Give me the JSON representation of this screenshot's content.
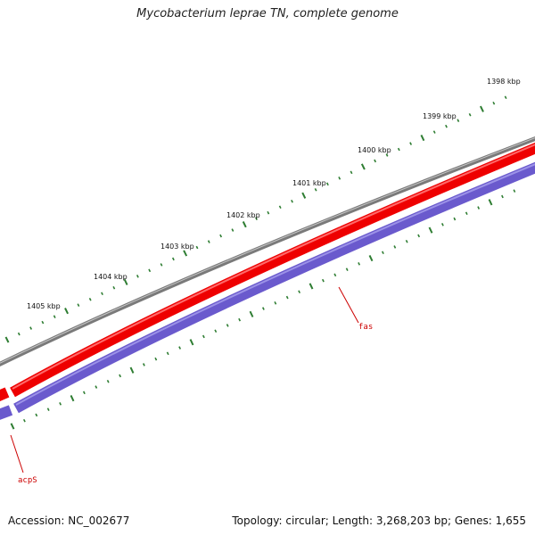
{
  "title": "Mycobacterium leprae TN, complete genome",
  "footer": {
    "accession": "Accession: NC_002677",
    "summary": "Topology: circular; Length: 3,268,203 bp; Genes: 1,655"
  },
  "colors": {
    "backbone": "#7a7a7a",
    "forward_feature": "#ee0000",
    "reverse_feature": "#6a5acd",
    "ticks": "#2e7d32",
    "gene_label": "#cc0000"
  },
  "kbp_labels": [
    "1398 kbp",
    "1399 kbp",
    "1400 kbp",
    "1401 kbp",
    "1402 kbp",
    "1403 kbp",
    "1404 kbp",
    "1405 kbp"
  ],
  "genes": {
    "fas": "fas",
    "acpS": "acpS"
  }
}
